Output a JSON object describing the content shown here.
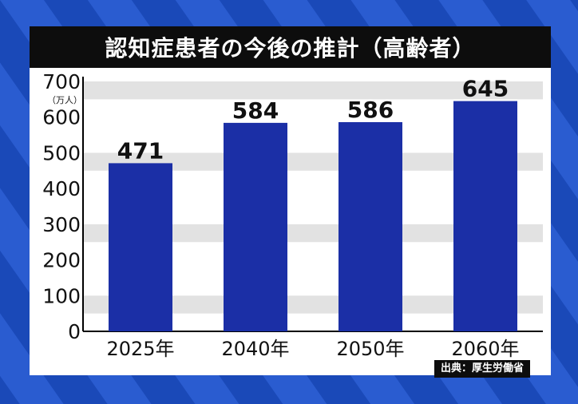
{
  "title": "認知症患者の今後の推計（高齢者）",
  "source": "出典：厚生労働省",
  "colors": {
    "background": "#1a49b8",
    "stripe": "#2a5cd0",
    "bar": "#1b2fa6",
    "band": "#e2e2e2",
    "title_bar": "#0d0d0d"
  },
  "chart_data": {
    "type": "bar",
    "title": "認知症患者の今後の推計（高齢者）",
    "categories": [
      "2025年",
      "2040年",
      "2050年",
      "2060年"
    ],
    "values": [
      471,
      584,
      586,
      645
    ],
    "data_labels": [
      "471",
      "584",
      "586",
      "645"
    ],
    "ylabel": "（万人）",
    "ylim": [
      0,
      700
    ],
    "yticks": [
      0,
      100,
      200,
      300,
      400,
      500,
      600,
      700
    ],
    "ytick_labels": [
      "0",
      "100",
      "200",
      "300",
      "400",
      "500",
      "600",
      "700"
    ],
    "grid": "alternating horizontal bands"
  }
}
